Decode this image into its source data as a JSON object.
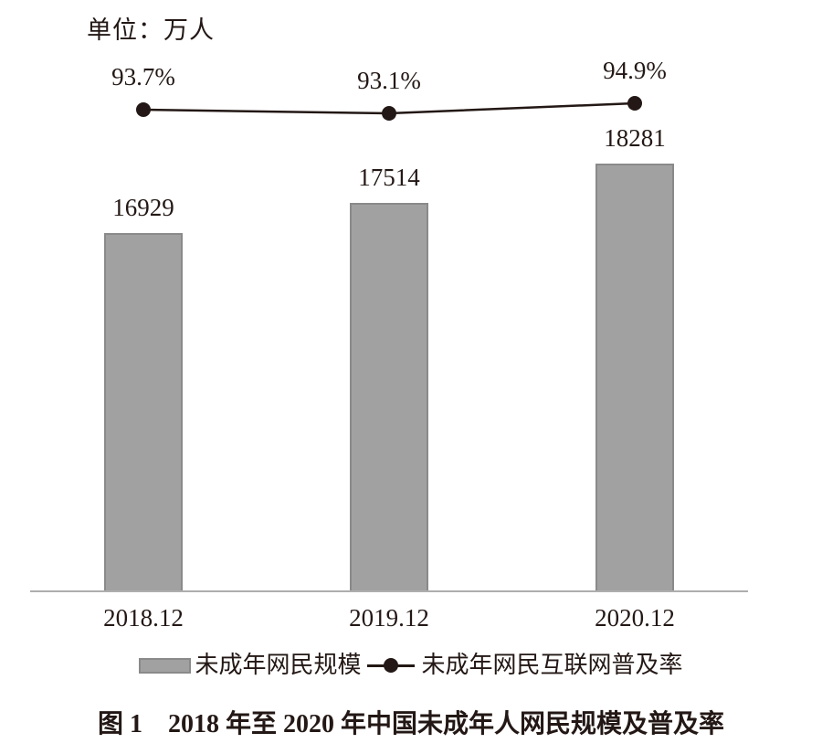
{
  "unit_label": "单位：万人",
  "legend": {
    "bar_label": "未成年网民规模",
    "line_label": "未成年网民互联网普及率"
  },
  "caption": "图 1　2018 年至 2020 年中国未成年人网民规模及普及率",
  "colors": {
    "bar_fill": "#a1a1a1",
    "bar_border": "#8a8a8a",
    "line": "#231815",
    "axis": "#aeaeae",
    "text": "#231815"
  },
  "chart_data": {
    "type": "combo",
    "title": "图 1　2018 年至 2020 年中国未成年人网民规模及普及率",
    "unit": "万人",
    "categories": [
      "2018.12",
      "2019.12",
      "2020.12"
    ],
    "series": [
      {
        "name": "未成年网民规模",
        "type": "bar",
        "unit": "万人",
        "values": [
          16929,
          17514,
          18281
        ],
        "value_labels": [
          "16929",
          "17514",
          "18281"
        ]
      },
      {
        "name": "未成年网民互联网普及率",
        "type": "line",
        "unit": "%",
        "values": [
          93.7,
          93.1,
          94.9
        ],
        "value_labels": [
          "93.7%",
          "93.1%",
          "94.9%"
        ]
      }
    ],
    "legend_position": "bottom",
    "grid": false,
    "data_labels_shown": true,
    "y_axis_shown": false
  }
}
